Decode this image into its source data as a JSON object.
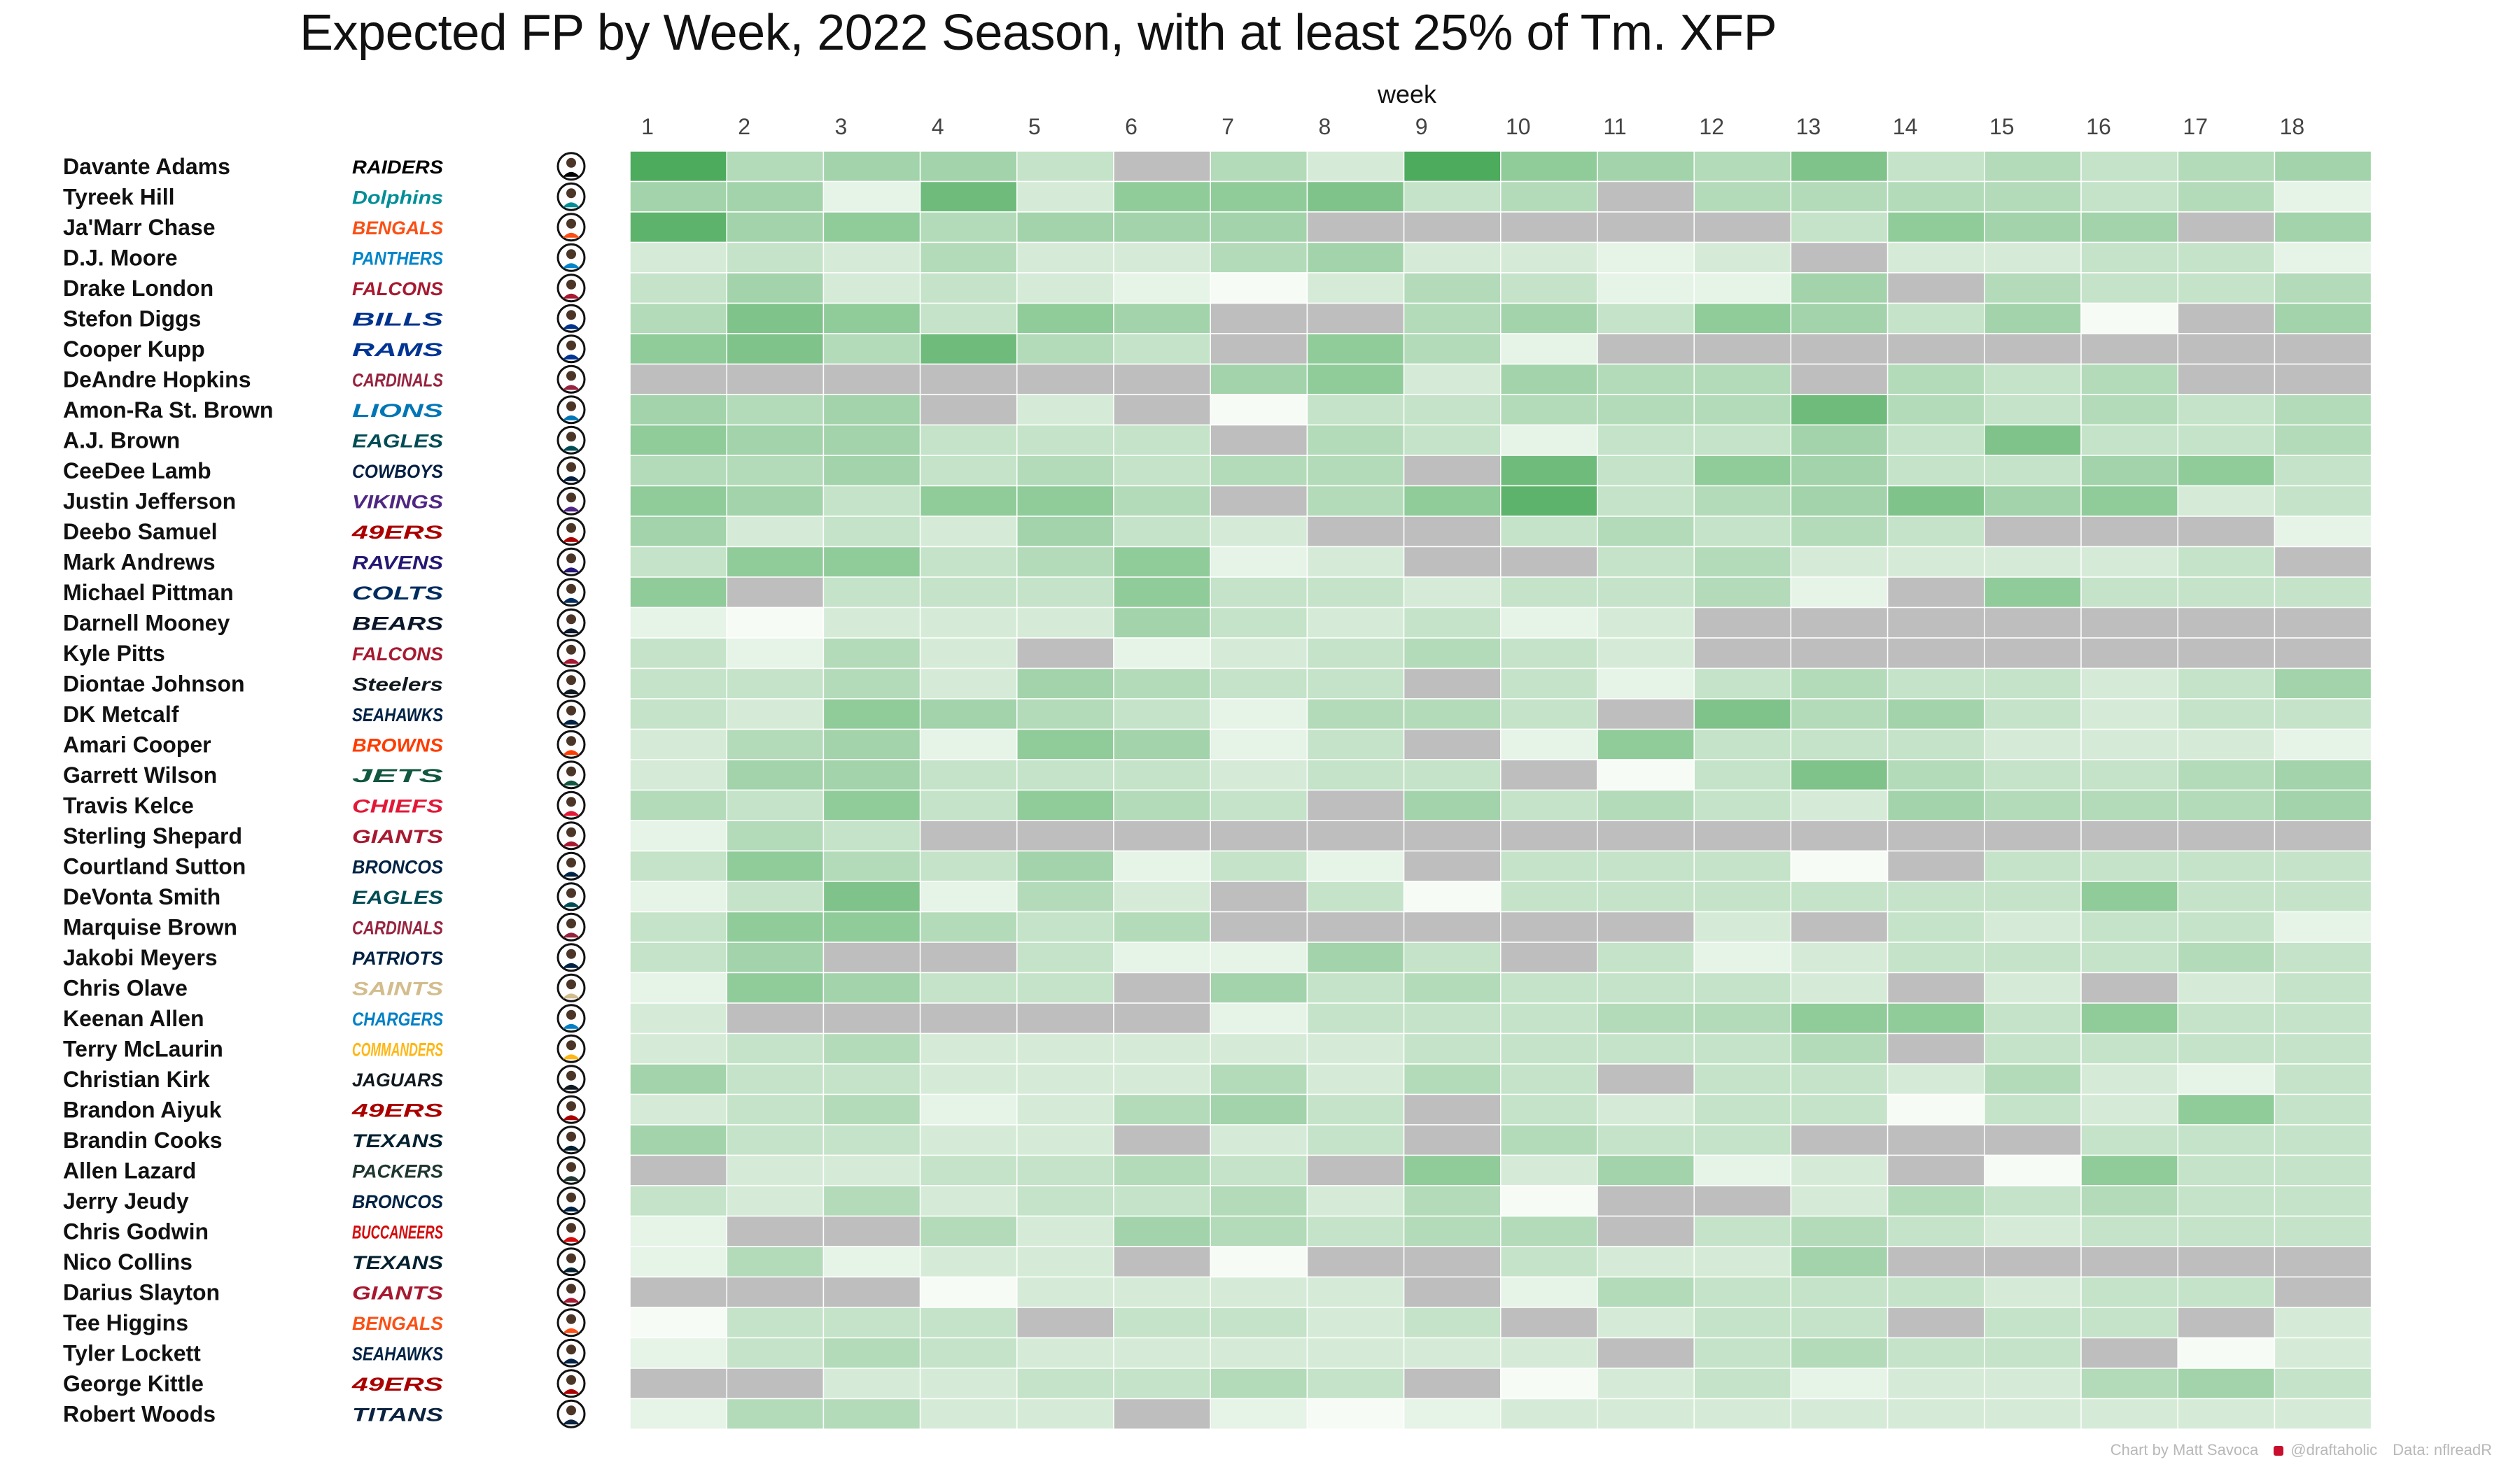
{
  "chart_data": {
    "type": "heatmap",
    "title": "Expected FP by Week, 2022 Season, with at least 25% of Tm. XFP",
    "xlabel": "week",
    "weeks": [
      1,
      2,
      3,
      4,
      5,
      6,
      7,
      8,
      9,
      10,
      11,
      12,
      13,
      14,
      15,
      16,
      17,
      18
    ],
    "scale": {
      "min": 0,
      "max": 10,
      "note": "0 = lightest green, 10 = darkest green, null = grey (below 25% of Tm. XFP)"
    },
    "colors": {
      "low": "#f7fbf6",
      "high": "#4cab5d",
      "missing": "#bebebe"
    },
    "rows": [
      {
        "player": "Davante Adams",
        "team": "RAIDERS",
        "values": [
          10,
          4,
          5,
          5,
          3,
          null,
          4,
          2,
          10,
          6,
          5,
          4,
          7,
          3,
          4,
          3,
          4,
          5
        ]
      },
      {
        "player": "Tyreek Hill",
        "team": "Dolphins",
        "values": [
          5,
          5,
          1,
          8,
          2,
          6,
          6,
          7,
          3,
          4,
          null,
          4,
          4,
          4,
          4,
          3,
          4,
          1
        ]
      },
      {
        "player": "Ja'Marr Chase",
        "team": "BENGALS",
        "values": [
          9,
          5,
          6,
          4,
          5,
          5,
          5,
          null,
          null,
          null,
          null,
          null,
          3,
          6,
          5,
          5,
          null,
          5
        ]
      },
      {
        "player": "D.J. Moore",
        "team": "PANTHERS",
        "values": [
          2,
          3,
          2,
          4,
          2,
          2,
          4,
          5,
          2,
          2,
          1,
          2,
          null,
          2,
          2,
          3,
          3,
          1
        ]
      },
      {
        "player": "Drake London",
        "team": "FALCONS",
        "values": [
          3,
          5,
          2,
          3,
          2,
          1,
          0,
          2,
          4,
          3,
          1,
          1,
          5,
          null,
          4,
          3,
          3,
          4
        ]
      },
      {
        "player": "Stefon Diggs",
        "team": "BILLS",
        "values": [
          4,
          7,
          6,
          3,
          6,
          5,
          null,
          null,
          4,
          5,
          3,
          6,
          5,
          3,
          5,
          0,
          null,
          5
        ]
      },
      {
        "player": "Cooper Kupp",
        "team": "RAMS",
        "values": [
          6,
          7,
          4,
          8,
          4,
          3,
          null,
          6,
          4,
          1,
          null,
          null,
          null,
          null,
          null,
          null,
          null,
          null
        ]
      },
      {
        "player": "DeAndre Hopkins",
        "team": "CARDINALS",
        "values": [
          null,
          null,
          null,
          null,
          null,
          null,
          5,
          6,
          2,
          5,
          4,
          4,
          null,
          4,
          3,
          4,
          null,
          null
        ]
      },
      {
        "player": "Amon-Ra St. Brown",
        "team": "LIONS",
        "values": [
          5,
          4,
          5,
          null,
          2,
          null,
          0,
          3,
          3,
          4,
          4,
          4,
          8,
          4,
          3,
          4,
          3,
          4
        ]
      },
      {
        "player": "A.J. Brown",
        "team": "EAGLES",
        "values": [
          6,
          5,
          5,
          3,
          3,
          3,
          null,
          4,
          3,
          1,
          3,
          3,
          5,
          3,
          7,
          3,
          3,
          4
        ]
      },
      {
        "player": "CeeDee Lamb",
        "team": "COWBOYS",
        "values": [
          4,
          4,
          5,
          3,
          4,
          3,
          4,
          4,
          null,
          8,
          3,
          6,
          5,
          3,
          3,
          5,
          6,
          3
        ]
      },
      {
        "player": "Justin Jefferson",
        "team": "VIKINGS",
        "values": [
          6,
          5,
          3,
          6,
          6,
          4,
          null,
          4,
          6,
          9,
          3,
          4,
          5,
          7,
          5,
          6,
          2,
          3
        ]
      },
      {
        "player": "Deebo Samuel",
        "team": "49ERS",
        "values": [
          5,
          2,
          3,
          2,
          5,
          3,
          2,
          null,
          null,
          3,
          4,
          3,
          4,
          3,
          null,
          null,
          null,
          1
        ]
      },
      {
        "player": "Mark Andrews",
        "team": "RAVENS",
        "values": [
          3,
          6,
          6,
          3,
          4,
          6,
          1,
          2,
          null,
          null,
          3,
          4,
          2,
          2,
          2,
          2,
          3,
          null
        ]
      },
      {
        "player": "Michael Pittman",
        "team": "COLTS",
        "values": [
          6,
          null,
          3,
          3,
          3,
          6,
          3,
          3,
          2,
          3,
          3,
          4,
          1,
          null,
          6,
          3,
          3,
          3
        ]
      },
      {
        "player": "Darnell Mooney",
        "team": "BEARS",
        "values": [
          1,
          0,
          2,
          2,
          2,
          5,
          3,
          2,
          3,
          1,
          2,
          null,
          null,
          null,
          null,
          null,
          null,
          null
        ]
      },
      {
        "player": "Kyle Pitts",
        "team": "FALCONS",
        "values": [
          3,
          1,
          4,
          2,
          null,
          1,
          2,
          3,
          4,
          3,
          2,
          null,
          null,
          null,
          null,
          null,
          null,
          null
        ]
      },
      {
        "player": "Diontae Johnson",
        "team": "Steelers",
        "values": [
          3,
          3,
          4,
          2,
          5,
          4,
          3,
          3,
          null,
          3,
          1,
          3,
          4,
          3,
          3,
          2,
          3,
          5
        ]
      },
      {
        "player": "DK Metcalf",
        "team": "SEAHAWKS",
        "values": [
          3,
          2,
          6,
          5,
          4,
          3,
          1,
          4,
          4,
          3,
          null,
          7,
          4,
          5,
          3,
          2,
          3,
          3
        ]
      },
      {
        "player": "Amari Cooper",
        "team": "BROWNS",
        "values": [
          2,
          4,
          5,
          1,
          6,
          5,
          1,
          3,
          null,
          1,
          6,
          3,
          3,
          3,
          2,
          2,
          2,
          1
        ]
      },
      {
        "player": "Garrett Wilson",
        "team": "JETS",
        "values": [
          2,
          5,
          5,
          3,
          3,
          3,
          2,
          3,
          3,
          null,
          0,
          3,
          7,
          4,
          3,
          3,
          4,
          5
        ]
      },
      {
        "player": "Travis Kelce",
        "team": "CHIEFS",
        "values": [
          4,
          3,
          6,
          3,
          6,
          4,
          3,
          null,
          5,
          3,
          4,
          3,
          2,
          5,
          4,
          4,
          4,
          5
        ]
      },
      {
        "player": "Sterling Shepard",
        "team": "GIANTS",
        "values": [
          1,
          4,
          3,
          null,
          null,
          null,
          null,
          null,
          null,
          null,
          null,
          null,
          null,
          null,
          null,
          null,
          null,
          null
        ]
      },
      {
        "player": "Courtland Sutton",
        "team": "BRONCOS",
        "values": [
          3,
          6,
          4,
          3,
          5,
          1,
          3,
          1,
          null,
          3,
          3,
          3,
          0,
          null,
          3,
          3,
          3,
          3
        ]
      },
      {
        "player": "DeVonta Smith",
        "team": "EAGLES",
        "values": [
          1,
          3,
          7,
          1,
          4,
          2,
          null,
          3,
          0,
          3,
          3,
          3,
          3,
          3,
          3,
          6,
          3,
          3
        ]
      },
      {
        "player": "Marquise Brown",
        "team": "CARDINALS",
        "values": [
          3,
          6,
          6,
          4,
          3,
          4,
          null,
          null,
          null,
          null,
          null,
          2,
          null,
          3,
          2,
          3,
          3,
          1
        ]
      },
      {
        "player": "Jakobi Meyers",
        "team": "PATRIOTS",
        "values": [
          3,
          5,
          null,
          null,
          3,
          1,
          1,
          5,
          3,
          null,
          3,
          1,
          2,
          3,
          3,
          3,
          4,
          3
        ]
      },
      {
        "player": "Chris Olave",
        "team": "SAINTS",
        "values": [
          1,
          6,
          5,
          3,
          3,
          null,
          5,
          3,
          4,
          3,
          3,
          3,
          2,
          null,
          2,
          null,
          2,
          3
        ]
      },
      {
        "player": "Keenan Allen",
        "team": "CHARGERS",
        "values": [
          2,
          null,
          null,
          null,
          null,
          null,
          1,
          3,
          3,
          3,
          4,
          4,
          6,
          6,
          3,
          6,
          3,
          3
        ]
      },
      {
        "player": "Terry McLaurin",
        "team": "COMMANDERS",
        "values": [
          2,
          3,
          4,
          2,
          2,
          2,
          2,
          2,
          3,
          3,
          3,
          3,
          4,
          null,
          3,
          3,
          3,
          3
        ]
      },
      {
        "player": "Christian Kirk",
        "team": "JAGUARS",
        "values": [
          5,
          3,
          3,
          2,
          2,
          2,
          4,
          2,
          4,
          3,
          null,
          3,
          3,
          2,
          4,
          2,
          1,
          3
        ]
      },
      {
        "player": "Brandon Aiyuk",
        "team": "49ERS",
        "values": [
          2,
          3,
          4,
          1,
          2,
          4,
          5,
          3,
          null,
          3,
          2,
          3,
          3,
          0,
          3,
          2,
          6,
          3
        ]
      },
      {
        "player": "Brandin Cooks",
        "team": "TEXANS",
        "values": [
          5,
          3,
          3,
          2,
          2,
          null,
          2,
          3,
          null,
          4,
          3,
          3,
          null,
          null,
          null,
          3,
          3,
          3
        ]
      },
      {
        "player": "Allen Lazard",
        "team": "PACKERS",
        "values": [
          null,
          2,
          2,
          3,
          3,
          4,
          3,
          null,
          6,
          2,
          5,
          1,
          2,
          null,
          0,
          6,
          3,
          3
        ]
      },
      {
        "player": "Jerry Jeudy",
        "team": "BRONCOS",
        "values": [
          3,
          2,
          4,
          2,
          3,
          3,
          4,
          2,
          4,
          0,
          null,
          null,
          2,
          4,
          3,
          4,
          3,
          3
        ]
      },
      {
        "player": "Chris Godwin",
        "team": "BUCCANEERS",
        "values": [
          1,
          null,
          null,
          4,
          2,
          5,
          4,
          3,
          4,
          4,
          null,
          3,
          4,
          3,
          2,
          3,
          3,
          3
        ]
      },
      {
        "player": "Nico Collins",
        "team": "TEXANS",
        "values": [
          1,
          4,
          1,
          2,
          2,
          null,
          0,
          null,
          null,
          3,
          2,
          2,
          5,
          null,
          null,
          null,
          null,
          null
        ]
      },
      {
        "player": "Darius Slayton",
        "team": "GIANTS",
        "values": [
          null,
          null,
          null,
          0,
          2,
          2,
          2,
          2,
          null,
          1,
          4,
          3,
          3,
          3,
          2,
          3,
          3,
          null
        ]
      },
      {
        "player": "Tee Higgins",
        "team": "BENGALS",
        "values": [
          0,
          3,
          3,
          3,
          null,
          3,
          3,
          2,
          3,
          null,
          2,
          3,
          3,
          null,
          3,
          3,
          null,
          2
        ]
      },
      {
        "player": "Tyler Lockett",
        "team": "SEAHAWKS",
        "values": [
          1,
          3,
          4,
          3,
          2,
          2,
          2,
          2,
          2,
          2,
          null,
          3,
          4,
          3,
          3,
          null,
          0,
          2
        ]
      },
      {
        "player": "George Kittle",
        "team": "49ERS",
        "values": [
          null,
          null,
          2,
          2,
          3,
          3,
          4,
          3,
          null,
          0,
          2,
          3,
          1,
          2,
          2,
          4,
          5,
          3
        ]
      },
      {
        "player": "Robert Woods",
        "team": "TITANS",
        "values": [
          1,
          4,
          4,
          2,
          2,
          null,
          1,
          0,
          1,
          2,
          2,
          2,
          2,
          2,
          2,
          2,
          2,
          2
        ]
      }
    ]
  },
  "footer": {
    "credit": "Chart by Matt Savoca",
    "handle": "@draftaholic",
    "source": "Data: nflreadR"
  },
  "team_logo_colors": {
    "RAIDERS": "#000000",
    "Dolphins": "#008e97",
    "BENGALS": "#fb4f14",
    "PANTHERS": "#0085ca",
    "FALCONS": "#a71930",
    "BILLS": "#00338d",
    "RAMS": "#003594",
    "CARDINALS": "#97233f",
    "LIONS": "#0076b6",
    "EAGLES": "#004c54",
    "COWBOYS": "#041e42",
    "VIKINGS": "#4f2683",
    "49ERS": "#aa0000",
    "RAVENS": "#241773",
    "COLTS": "#002c5f",
    "BEARS": "#0b162a",
    "Steelers": "#101820",
    "SEAHAWKS": "#002244",
    "BROWNS": "#ff3c00",
    "JETS": "#125740",
    "CHIEFS": "#e31837",
    "GIANTS": "#a71930",
    "BRONCOS": "#002244",
    "PATRIOTS": "#002244",
    "SAINTS": "#d3bc8d",
    "CHARGERS": "#0080c6",
    "COMMANDERS": "#ffb612",
    "JAGUARS": "#101820",
    "TEXANS": "#03202f",
    "PACKERS": "#203731",
    "BUCCANEERS": "#d50a0a",
    "TITANS": "#0c2340"
  }
}
